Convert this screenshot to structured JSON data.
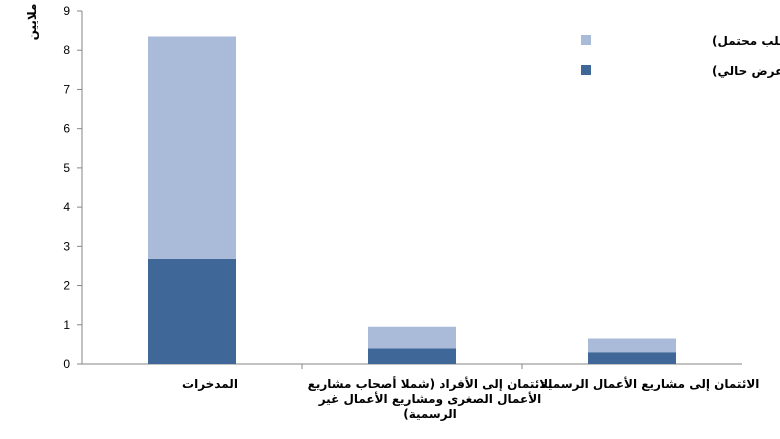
{
  "chart_data": {
    "type": "bar",
    "stacked": true,
    "ylabel": "ملايين",
    "ylim": [
      0,
      9
    ],
    "yticks": [
      0,
      1,
      2,
      3,
      4,
      5,
      6,
      7,
      8,
      9
    ],
    "categories": [
      [
        "المدخرات"
      ],
      [
        "الائتمان إلى الأفراد (شملا أصحاب مشاريع",
        "الأعمال الصغرى ومشاريع الأعمال غير",
        "الرسمية)"
      ],
      [
        "الائتمان إلى مشاريع الأعمال الرسمية"
      ]
    ],
    "series": [
      {
        "name": "مشمولون (عرض حالي)",
        "color": "#3f6797",
        "values": [
          2.68,
          0.4,
          0.3
        ]
      },
      {
        "name": "مستبعدون (طلب محتمل)",
        "color": "#a9bbd8",
        "values": [
          5.67,
          0.55,
          0.35
        ]
      }
    ],
    "legend_position": "top-right",
    "grid": false
  }
}
